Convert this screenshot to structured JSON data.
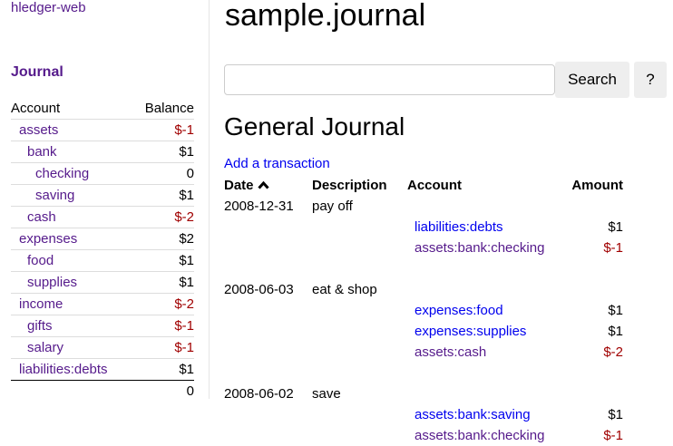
{
  "sidebar": {
    "brand": "hledger-web",
    "journal_link": "Journal",
    "headers": {
      "account": "Account",
      "balance": "Balance"
    },
    "accounts": [
      {
        "name": "assets",
        "balance": "$-1",
        "depth": 1,
        "neg": true
      },
      {
        "name": "bank",
        "balance": "$1",
        "depth": 2,
        "neg": false
      },
      {
        "name": "checking",
        "balance": "0",
        "depth": 3,
        "neg": false
      },
      {
        "name": "saving",
        "balance": "$1",
        "depth": 3,
        "neg": false
      },
      {
        "name": "cash",
        "balance": "$-2",
        "depth": 2,
        "neg": true
      },
      {
        "name": "expenses",
        "balance": "$2",
        "depth": 1,
        "neg": false
      },
      {
        "name": "food",
        "balance": "$1",
        "depth": 2,
        "neg": false
      },
      {
        "name": "supplies",
        "balance": "$1",
        "depth": 2,
        "neg": false
      },
      {
        "name": "income",
        "balance": "$-2",
        "depth": 1,
        "neg": true
      },
      {
        "name": "gifts",
        "balance": "$-1",
        "depth": 2,
        "neg": true
      },
      {
        "name": "salary",
        "balance": "$-1",
        "depth": 2,
        "neg": true
      },
      {
        "name": "liabilities:debts",
        "balance": "$1",
        "depth": 1,
        "neg": false
      }
    ],
    "total": "0"
  },
  "main": {
    "title": "sample.journal",
    "search_placeholder": "",
    "search_button": "Search",
    "help_button": "?",
    "section_title": "General Journal",
    "add_link": "Add a transaction",
    "columns": {
      "date": "Date",
      "sort_icon": "chevron-up-icon",
      "description": "Description",
      "account": "Account",
      "amount": "Amount"
    },
    "transactions": [
      {
        "date": "2008-12-31",
        "description": "pay off",
        "postings": [
          {
            "account": "liabilities:debts",
            "amount": "$1",
            "visited": false
          },
          {
            "account": "assets:bank:checking",
            "amount": "$-1",
            "visited": true
          }
        ]
      },
      {
        "date": "2008-06-03",
        "description": "eat & shop",
        "postings": [
          {
            "account": "expenses:food",
            "amount": "$1",
            "visited": false
          },
          {
            "account": "expenses:supplies",
            "amount": "$1",
            "visited": false
          },
          {
            "account": "assets:cash",
            "amount": "$-2",
            "visited": true
          }
        ]
      },
      {
        "date": "2008-06-02",
        "description": "save",
        "postings": [
          {
            "account": "assets:bank:saving",
            "amount": "$1",
            "visited": false
          },
          {
            "account": "assets:bank:checking",
            "amount": "$-1",
            "visited": true
          }
        ]
      }
    ]
  },
  "colors": {
    "visited_link": "#551a8b",
    "link": "#0000ee",
    "negative": "#a00000"
  }
}
